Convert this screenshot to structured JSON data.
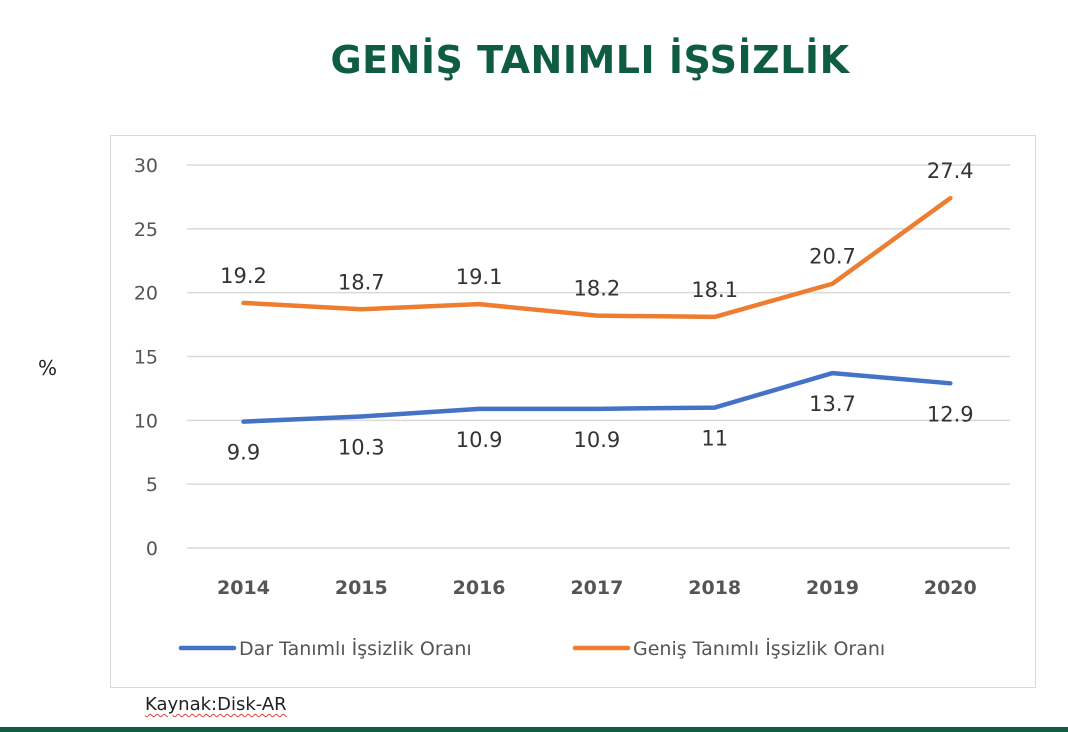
{
  "page": {
    "title": "GENİŞ TANIMLI İŞSİZLİK",
    "title_color": "#0E5C43",
    "y_axis_unit": "%",
    "source": "Kaynak:Disk-AR",
    "band_color": "#0E5C43"
  },
  "chart_data": {
    "type": "line",
    "title": "GENİŞ TANIMLI İŞSİZLİK",
    "xlabel": "",
    "ylabel": "%",
    "categories": [
      "2014",
      "2015",
      "2016",
      "2017",
      "2018",
      "2019",
      "2020"
    ],
    "series": [
      {
        "name": "Dar Tanımlı İşsizlik Oranı",
        "color": "#4472C4",
        "values": [
          9.9,
          10.3,
          10.9,
          10.9,
          11,
          13.7,
          12.9
        ],
        "labels": [
          "9.9",
          "10.3",
          "10.9",
          "10.9",
          "11",
          "13.7",
          "12.9"
        ],
        "label_position": "below"
      },
      {
        "name": "Geniş Tanımlı İşsizlik Oranı",
        "color": "#ED7D31",
        "values": [
          19.2,
          18.7,
          19.1,
          18.2,
          18.1,
          20.7,
          27.4
        ],
        "labels": [
          "19.2",
          "18.7",
          "19.1",
          "18.2",
          "18.1",
          "20.7",
          "27.4"
        ],
        "label_position": "above"
      }
    ],
    "yticks": [
      "0",
      "5",
      "10",
      "15",
      "20",
      "25",
      "30"
    ],
    "ylim": [
      0,
      30
    ],
    "grid": true,
    "legend_position": "bottom"
  }
}
